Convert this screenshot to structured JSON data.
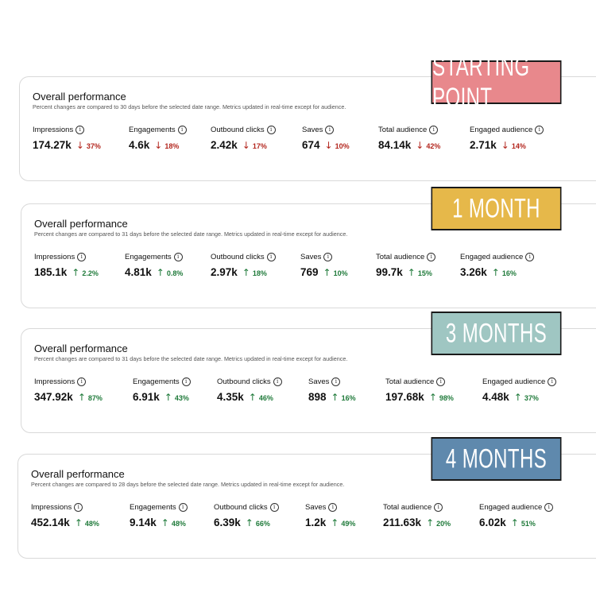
{
  "panels": [
    {
      "title": "Overall performance",
      "subtitle": "Percent changes are compared to 30 days before the selected date range. Metrics updated in real-time except for audience.",
      "stamp": "STARTING POINT",
      "stamp_color": "#e8888c",
      "metrics": [
        {
          "label": "Impressions",
          "value": "174.27k",
          "arrow": "↓",
          "pct": "37%",
          "direction": "down"
        },
        {
          "label": "Engagements",
          "value": "4.6k",
          "arrow": "↓",
          "pct": "18%",
          "direction": "down"
        },
        {
          "label": "Outbound clicks",
          "value": "2.42k",
          "arrow": "↓",
          "pct": "17%",
          "direction": "down"
        },
        {
          "label": "Saves",
          "value": "674",
          "arrow": "↓",
          "pct": "10%",
          "direction": "down"
        },
        {
          "label": "Total audience",
          "value": "84.14k",
          "arrow": "↓",
          "pct": "42%",
          "direction": "down"
        },
        {
          "label": "Engaged audience",
          "value": "2.71k",
          "arrow": "↓",
          "pct": "14%",
          "direction": "down"
        }
      ]
    },
    {
      "title": "Overall performance",
      "subtitle": "Percent changes are compared to 31 days before the selected date range. Metrics updated in real-time except for audience.",
      "stamp": "1 MONTH",
      "stamp_color": "#e6b84a",
      "metrics": [
        {
          "label": "Impressions",
          "value": "185.1k",
          "arrow": "↑",
          "pct": "2.2%",
          "direction": "up"
        },
        {
          "label": "Engagements",
          "value": "4.81k",
          "arrow": "↑",
          "pct": "0.8%",
          "direction": "up"
        },
        {
          "label": "Outbound clicks",
          "value": "2.97k",
          "arrow": "↑",
          "pct": "18%",
          "direction": "up"
        },
        {
          "label": "Saves",
          "value": "769",
          "arrow": "↑",
          "pct": "10%",
          "direction": "up"
        },
        {
          "label": "Total audience",
          "value": "99.7k",
          "arrow": "↑",
          "pct": "15%",
          "direction": "up"
        },
        {
          "label": "Engaged audience",
          "value": "3.26k",
          "arrow": "↑",
          "pct": "16%",
          "direction": "up"
        }
      ]
    },
    {
      "title": "Overall performance",
      "subtitle": "Percent changes are compared to 31 days before the selected date range. Metrics updated in real-time except for audience.",
      "stamp": "3 MONTHS",
      "stamp_color": "#9fc6c2",
      "metrics": [
        {
          "label": "Impressions",
          "value": "347.92k",
          "arrow": "↑",
          "pct": "87%",
          "direction": "up"
        },
        {
          "label": "Engagements",
          "value": "6.91k",
          "arrow": "↑",
          "pct": "43%",
          "direction": "up"
        },
        {
          "label": "Outbound clicks",
          "value": "4.35k",
          "arrow": "↑",
          "pct": "46%",
          "direction": "up"
        },
        {
          "label": "Saves",
          "value": "898",
          "arrow": "↑",
          "pct": "16%",
          "direction": "up"
        },
        {
          "label": "Total audience",
          "value": "197.68k",
          "arrow": "↑",
          "pct": "98%",
          "direction": "up"
        },
        {
          "label": "Engaged audience",
          "value": "4.48k",
          "arrow": "↑",
          "pct": "37%",
          "direction": "up"
        }
      ]
    },
    {
      "title": "Overall performance",
      "subtitle": "Percent changes are compared to 28 days before the selected date range. Metrics updated in real-time except for audience.",
      "stamp": "4 MONTHS",
      "stamp_color": "#5f89ad",
      "metrics": [
        {
          "label": "Impressions",
          "value": "452.14k",
          "arrow": "↑",
          "pct": "48%",
          "direction": "up"
        },
        {
          "label": "Engagements",
          "value": "9.14k",
          "arrow": "↑",
          "pct": "48%",
          "direction": "up"
        },
        {
          "label": "Outbound clicks",
          "value": "6.39k",
          "arrow": "↑",
          "pct": "66%",
          "direction": "up"
        },
        {
          "label": "Saves",
          "value": "1.2k",
          "arrow": "↑",
          "pct": "49%",
          "direction": "up"
        },
        {
          "label": "Total audience",
          "value": "211.63k",
          "arrow": "↑",
          "pct": "20%",
          "direction": "up"
        },
        {
          "label": "Engaged audience",
          "value": "6.02k",
          "arrow": "↑",
          "pct": "51%",
          "direction": "up"
        }
      ]
    }
  ],
  "info_icon_glyph": "i",
  "colors": {
    "down": "#b3261e",
    "up": "#1f7a3a"
  }
}
